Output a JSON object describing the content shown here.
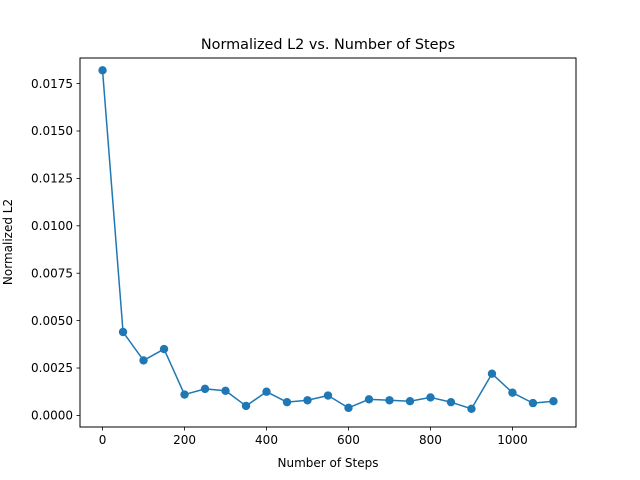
{
  "chart_data": {
    "type": "line",
    "title": "Normalized L2 vs. Number of Steps",
    "xlabel": "Number of Steps",
    "ylabel": "Normalized L2",
    "xlim": [
      -55,
      1155
    ],
    "ylim": [
      -0.00061,
      0.01885
    ],
    "xticks": [
      0,
      200,
      400,
      600,
      800,
      1000
    ],
    "xtick_labels": [
      "0",
      "200",
      "400",
      "600",
      "800",
      "1000"
    ],
    "yticks": [
      0.0,
      0.0025,
      0.005,
      0.0075,
      0.01,
      0.0125,
      0.015,
      0.0175
    ],
    "ytick_labels": [
      "0.0000",
      "0.0025",
      "0.0050",
      "0.0075",
      "0.0100",
      "0.0125",
      "0.0150",
      "0.0175"
    ],
    "grid": false,
    "legend": "none",
    "series": [
      {
        "color": "#1f77b4",
        "marker": "circle",
        "x": [
          0,
          50,
          100,
          150,
          200,
          250,
          300,
          350,
          400,
          450,
          500,
          550,
          600,
          650,
          700,
          750,
          800,
          850,
          900,
          950,
          1000,
          1050,
          1100
        ],
        "y": [
          0.0182,
          0.0044,
          0.0029,
          0.0035,
          0.0011,
          0.0014,
          0.0013,
          0.0005,
          0.00125,
          0.0007,
          0.0008,
          0.00105,
          0.0004,
          0.00085,
          0.0008,
          0.00075,
          0.00095,
          0.0007,
          0.00035,
          0.0022,
          0.0012,
          0.00065,
          0.00075
        ]
      }
    ]
  }
}
